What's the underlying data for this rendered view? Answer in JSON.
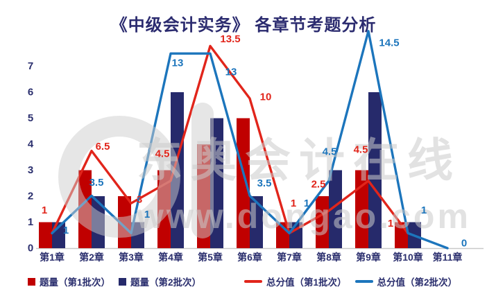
{
  "colors": {
    "bar_batch1": "#c00000",
    "bar_batch2": "#262a6b",
    "line_batch1": "#e1251b",
    "line_batch2": "#1c75bc",
    "axis_text": "#2b2f6e",
    "title_text": "#2b2b6f",
    "axis_line": "#c9c9c9"
  },
  "watermark": {
    "brand_text": "东奥会计在线",
    "url_text": "www.dongao.com"
  },
  "chart_data": {
    "type": "bar+line combo",
    "title": "《中级会计实务》 各章节考题分析",
    "categories": [
      "第1章",
      "第2章",
      "第3章",
      "第4章",
      "第5章",
      "第6章",
      "第7章",
      "第8章",
      "第9章",
      "第10章",
      "第11章"
    ],
    "y_axis": {
      "ticks": [
        0,
        1,
        2,
        3,
        4,
        5,
        6,
        7
      ],
      "max": 7.5,
      "grid": false
    },
    "secondary_axis": {
      "visible": false,
      "max": 16
    },
    "bar_series": [
      {
        "name": "题量（第1批次）",
        "color": "#c00000",
        "values": [
          1,
          3,
          2,
          3,
          4,
          5,
          1,
          2,
          3,
          1,
          0
        ]
      },
      {
        "name": "题量（第2批次）",
        "color": "#262a6b",
        "values": [
          1,
          2,
          1,
          6,
          5,
          2,
          1,
          3,
          6,
          1,
          0
        ]
      }
    ],
    "line_series": [
      {
        "name": "总分值（第1批次）",
        "color": "#e1251b",
        "values": [
          1,
          6.5,
          3,
          4.5,
          13.5,
          10,
          1,
          2.5,
          4.5,
          1,
          null
        ]
      },
      {
        "name": "总分值（第2批次）",
        "color": "#1c75bc",
        "values": [
          1,
          3.5,
          1,
          13,
          13,
          3.5,
          1,
          4.5,
          14.5,
          1,
          0
        ]
      }
    ],
    "legend_position": "bottom"
  }
}
